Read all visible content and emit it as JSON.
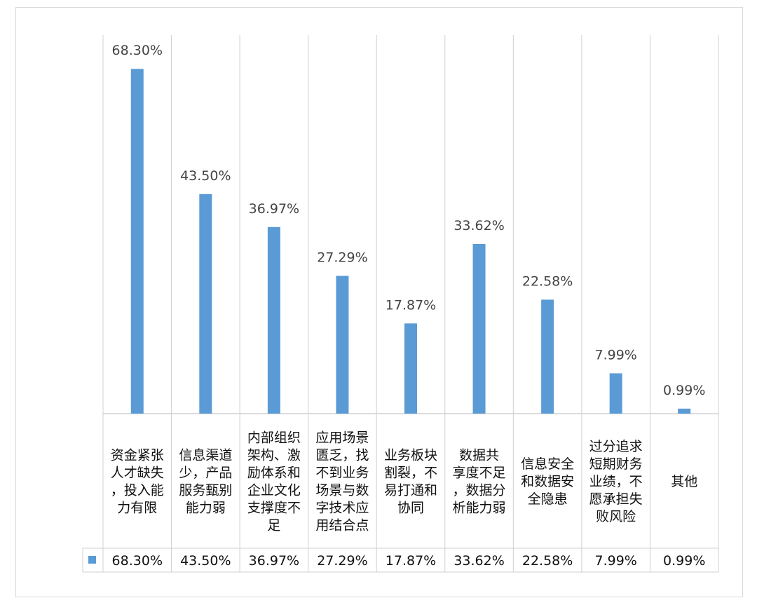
{
  "chart_data": {
    "type": "bar",
    "categories": [
      "资金紧张人才缺失，投入能力有限",
      "信息渠道少，产品服务甄别能力弱",
      "内部组织架构、激励体系和企业文化支撑度不足",
      "应用场景匮乏，找不到业务场景与数字技术应用结合点",
      "业务板块割裂，不易打通和协同",
      "数据共享度不足，数据分析能力弱",
      "信息安全和数据安全隐患",
      "过分追求短期财务业绩，不愿承担失败风险",
      "其他"
    ],
    "category_lines": [
      [
        "资金紧张",
        "人才缺失",
        "，投入能",
        "力有限"
      ],
      [
        "信息渠道",
        "少，产品",
        "服务甄别",
        "能力弱"
      ],
      [
        "内部组织",
        "架构、激",
        "励体系和",
        "企业文化",
        "支撑度不",
        "足"
      ],
      [
        "应用场景",
        "匮乏，找",
        "不到业务",
        "场景与数",
        "字技术应",
        "用结合点"
      ],
      [
        "业务板块",
        "割裂，不",
        "易打通和",
        "协同"
      ],
      [
        "数据共",
        "享度不足",
        "，数据分",
        "析能力弱"
      ],
      [
        "信息安全",
        "和数据安",
        "全隐患"
      ],
      [
        "过分追求",
        "短期财务",
        "业绩，不",
        "愿承担失",
        "败风险"
      ],
      [
        "其他"
      ]
    ],
    "values": [
      68.3,
      43.5,
      36.97,
      27.29,
      17.87,
      33.62,
      22.58,
      7.99,
      0.99
    ],
    "value_labels": [
      "68.30%",
      "43.50%",
      "36.97%",
      "27.29%",
      "17.87%",
      "33.62%",
      "22.58%",
      "7.99%",
      "0.99%"
    ],
    "ylim": [
      0,
      75
    ],
    "bar_color": "#5b9bd5",
    "grid": "vertical category separators",
    "legend": "data table below chart with series swatch"
  }
}
